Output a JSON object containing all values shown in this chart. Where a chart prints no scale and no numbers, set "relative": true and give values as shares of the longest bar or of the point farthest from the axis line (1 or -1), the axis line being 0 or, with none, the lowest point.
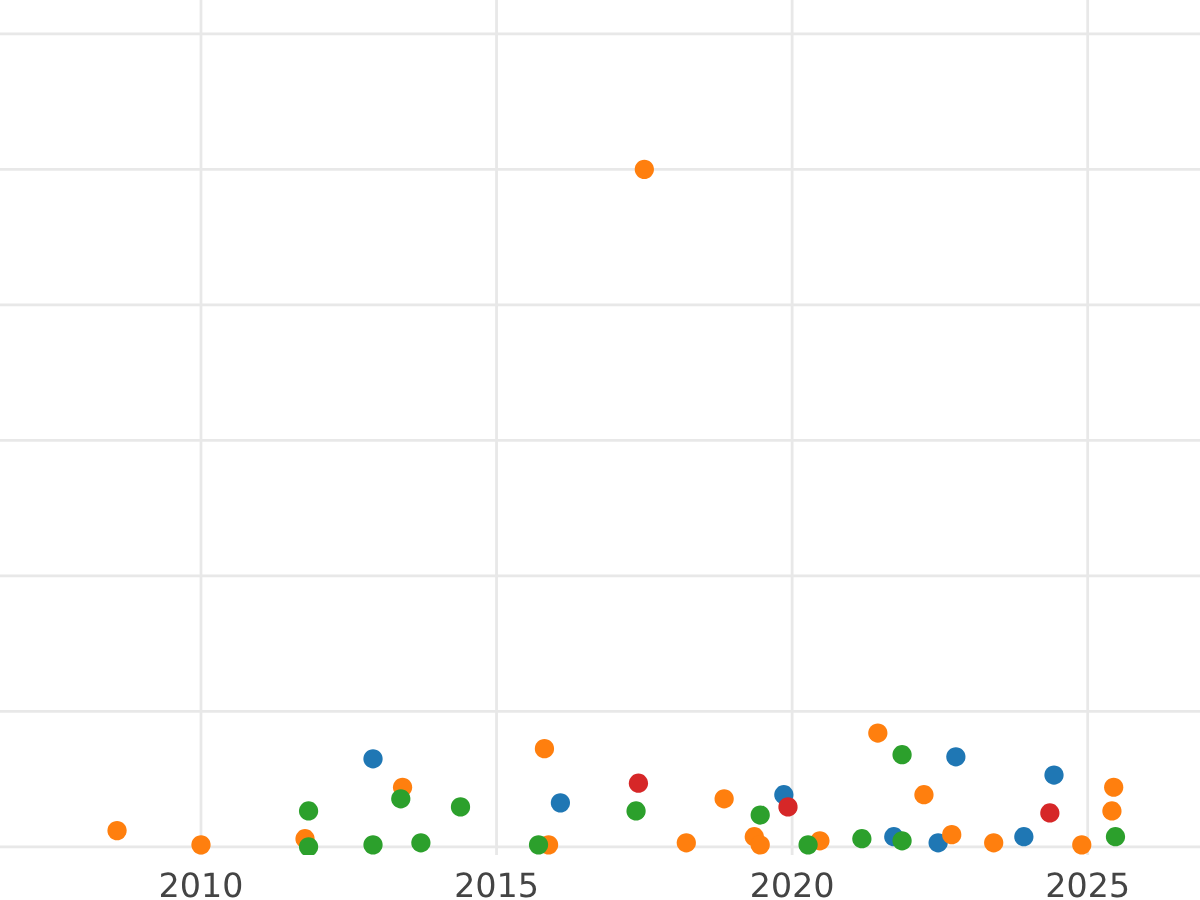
{
  "chart_data": {
    "type": "scatter",
    "relative": true,
    "grid": true,
    "marker": "circle",
    "xlim": [
      2006.6,
      2026.9
    ],
    "xticks": [
      2010,
      2015,
      2020,
      2025
    ],
    "tick_labels": "x",
    "series": [
      {
        "color": "#1f77b4",
        "x": [
          2012.91,
          2016.08,
          2019.86,
          2022.77,
          2024.43,
          2021.72,
          2022.47,
          2023.92
        ],
        "values": [
          0.13,
          0.065,
          0.077,
          0.133,
          0.106,
          0.015,
          0.006,
          0.015
        ]
      },
      {
        "color": "#ff7f0e",
        "x": [
          2008.58,
          2010.0,
          2011.76,
          2013.41,
          2015.81,
          2015.88,
          2017.5,
          2018.21,
          2018.85,
          2019.36,
          2019.46,
          2020.47,
          2021.45,
          2022.23,
          2022.7,
          2023.41,
          2024.9,
          2025.44,
          2025.41
        ],
        "values": [
          0.024,
          0.003,
          0.012,
          0.088,
          0.145,
          0.003,
          1,
          0.006,
          0.071,
          0.015,
          0.003,
          0.009,
          0.168,
          0.077,
          0.018,
          0.006,
          0.003,
          0.088,
          0.053
        ]
      },
      {
        "color": "#2ca02c",
        "x": [
          2011.82,
          2011.82,
          2013.38,
          2012.91,
          2013.72,
          2014.39,
          2015.71,
          2017.36,
          2019.46,
          2020.27,
          2021.18,
          2021.86,
          2021.86,
          2025.47
        ],
        "values": [
          0.053,
          0,
          0.071,
          0.003,
          0.006,
          0.059,
          0.003,
          0.053,
          0.047,
          0.003,
          0.012,
          0.136,
          0.009,
          0.015
        ]
      },
      {
        "color": "#d62728",
        "x": [
          2017.4,
          2019.93,
          2024.36
        ],
        "values": [
          0.094,
          0.059,
          0.05
        ]
      }
    ]
  }
}
